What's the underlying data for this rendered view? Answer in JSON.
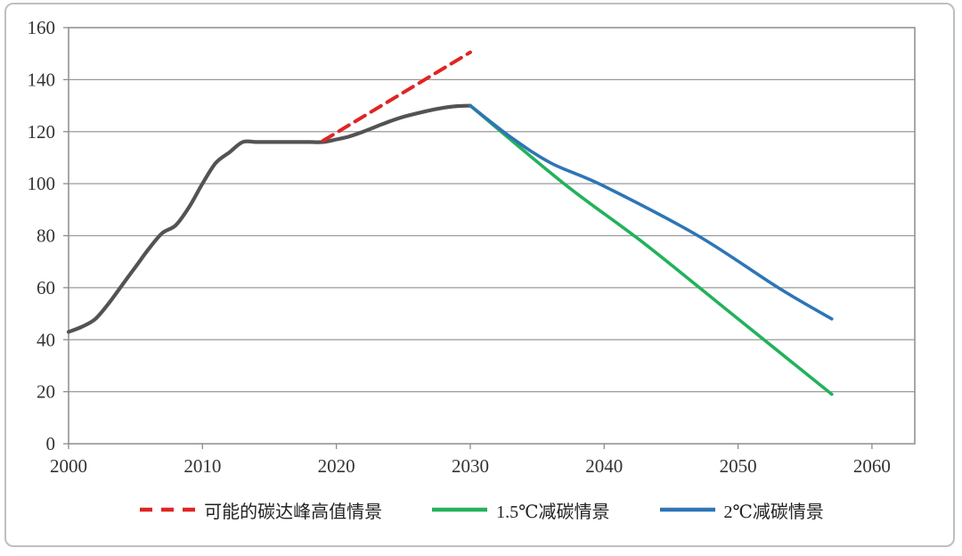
{
  "chart_data": {
    "type": "line",
    "title": "",
    "xlabel": "",
    "ylabel": "",
    "xlim": [
      2000,
      2063.2
    ],
    "ylim": [
      0,
      160
    ],
    "x_ticks": [
      2000,
      2010,
      2020,
      2030,
      2040,
      2050,
      2060
    ],
    "y_ticks": [
      0,
      20,
      40,
      60,
      80,
      100,
      120,
      140,
      160
    ],
    "grid": "horizontal",
    "grid_color": "#9a9a9a",
    "axis_box_color": "#8c8c8c",
    "legend_position": "bottom",
    "series": [
      {
        "id": "historical-emissions",
        "color": "#535353",
        "style": "solid",
        "width": 4.2,
        "smooth": true,
        "in_legend": false,
        "points": [
          [
            2000,
            43
          ],
          [
            2001,
            45
          ],
          [
            2002,
            48
          ],
          [
            2003,
            54
          ],
          [
            2004,
            61
          ],
          [
            2005,
            68
          ],
          [
            2006,
            75
          ],
          [
            2007,
            81
          ],
          [
            2008,
            84
          ],
          [
            2009,
            91
          ],
          [
            2010,
            100
          ],
          [
            2011,
            108
          ],
          [
            2012,
            112
          ],
          [
            2013,
            116
          ],
          [
            2014,
            116
          ],
          [
            2015,
            116
          ],
          [
            2016,
            116
          ],
          [
            2017,
            116
          ],
          [
            2018,
            116
          ],
          [
            2019,
            116
          ],
          [
            2020,
            117
          ],
          [
            2021,
            118.2
          ],
          [
            2022,
            120
          ],
          [
            2023,
            122
          ],
          [
            2024,
            124
          ],
          [
            2025,
            125.7
          ],
          [
            2026,
            127
          ],
          [
            2027,
            128.2
          ],
          [
            2028,
            129.2
          ],
          [
            2029,
            129.8
          ],
          [
            2030,
            130
          ]
        ]
      },
      {
        "id": "peak-high-scenario",
        "label": "可能的碳达峰高值情景",
        "color": "#e02424",
        "style": "dashed",
        "width": 4,
        "smooth": false,
        "in_legend": true,
        "points": [
          [
            2019,
            116.5
          ],
          [
            2030,
            150.5
          ]
        ]
      },
      {
        "id": "reduction-1p5c",
        "label": "1.5℃减碳情景",
        "color": "#22b25c",
        "style": "solid",
        "width": 3.6,
        "smooth": true,
        "in_legend": true,
        "points": [
          [
            2030,
            130
          ],
          [
            2037,
            100
          ],
          [
            2043,
            77
          ],
          [
            2050,
            48
          ],
          [
            2057,
            19
          ]
        ]
      },
      {
        "id": "reduction-2c",
        "label": "2℃减碳情景",
        "color": "#2e75b6",
        "style": "solid",
        "width": 3.6,
        "smooth": true,
        "in_legend": true,
        "points": [
          [
            2030,
            130
          ],
          [
            2033,
            118
          ],
          [
            2036,
            108
          ],
          [
            2040,
            99
          ],
          [
            2047,
            80
          ],
          [
            2053,
            60
          ],
          [
            2057,
            48
          ]
        ]
      }
    ],
    "legend": [
      {
        "label": "可能的碳达峰高值情景",
        "color": "#e02424",
        "style": "dashed"
      },
      {
        "label": "1.5℃减碳情景",
        "color": "#22b25c",
        "style": "solid"
      },
      {
        "label": "2℃减碳情景",
        "color": "#2e75b6",
        "style": "solid"
      }
    ]
  },
  "frame": {
    "border_color": "#bcc0c3",
    "background": "#ffffff"
  }
}
